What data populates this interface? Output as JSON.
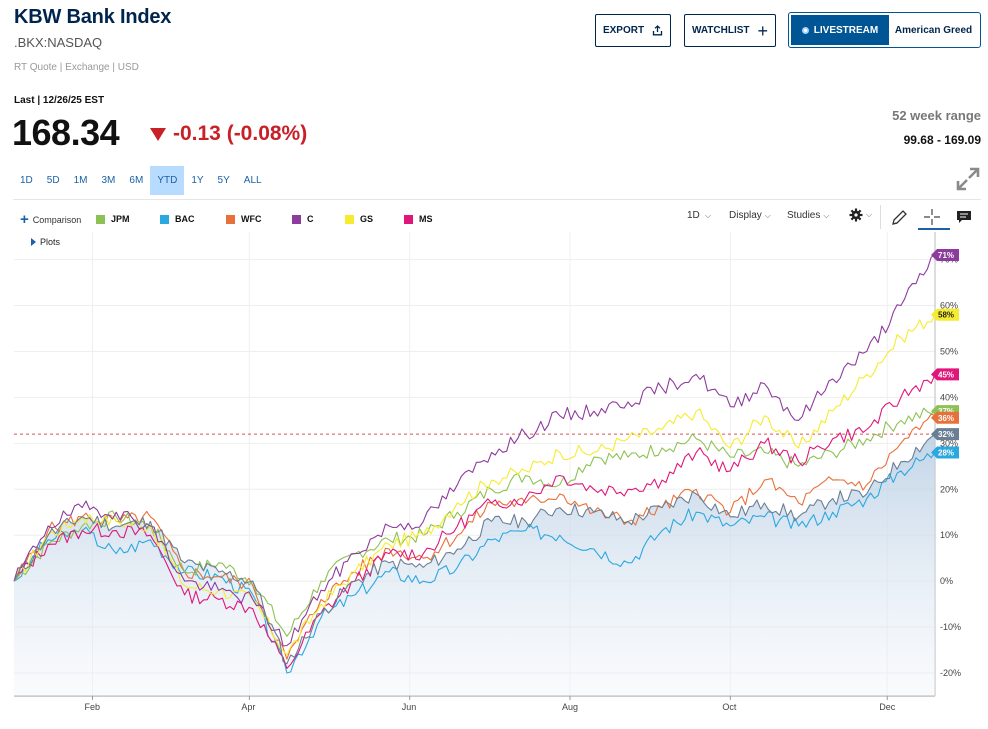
{
  "header": {
    "title": "KBW Bank Index",
    "symbol": ".BKX:NASDAQ",
    "meta": "RT Quote | Exchange | USD"
  },
  "buttons": {
    "export": "EXPORT",
    "watchlist": "WATCHLIST",
    "livestream": "LIVESTREAM",
    "show": "American Greed"
  },
  "quote": {
    "last_label": "Last | 12/26/25 EST",
    "price": "168.34",
    "change": "-0.13 (-0.08%)",
    "range_label": "52 week range",
    "range_value": "99.68 - 169.09"
  },
  "periods": [
    {
      "label": "1D",
      "active": false
    },
    {
      "label": "5D",
      "active": false
    },
    {
      "label": "1M",
      "active": false
    },
    {
      "label": "3M",
      "active": false
    },
    {
      "label": "6M",
      "active": false
    },
    {
      "label": "YTD",
      "active": true
    },
    {
      "label": "1Y",
      "active": false
    },
    {
      "label": "5Y",
      "active": false
    },
    {
      "label": "ALL",
      "active": false
    }
  ],
  "toolbar": {
    "comparison": "Comparison",
    "plots": "Plots",
    "interval": "1D",
    "display": "Display",
    "studies": "Studies"
  },
  "colors": {
    "BKX": "#6a7f94",
    "JPM": "#8dc153",
    "BAC": "#2aa8e0",
    "WFC": "#e8703a",
    "C": "#8e3b9e",
    "GS": "#f5ec2f",
    "MS": "#e0177a"
  },
  "chart_data": {
    "type": "line",
    "x_tick_labels": [
      "Feb",
      "Apr",
      "Jun",
      "Aug",
      "Oct",
      "Dec"
    ],
    "y_tick_labels": [
      "-20%",
      "-10%",
      "0%",
      "10%",
      "20%",
      "30%",
      "40%",
      "50%",
      "60%",
      "70%"
    ],
    "ylim": [
      -25,
      76
    ],
    "y_unit": "%",
    "grid": true,
    "reference_line": 32,
    "end_labels": [
      {
        "series": "C",
        "label": "71%"
      },
      {
        "series": "GS",
        "label": "58%"
      },
      {
        "series": "MS",
        "label": "45%"
      },
      {
        "series": "JPM",
        "label": "37%"
      },
      {
        "series": "WFC",
        "label": "36%"
      },
      {
        "series": "BKX",
        "label": "32%"
      },
      {
        "series": "BAC",
        "label": "28%"
      }
    ],
    "x": [
      "Jan 2",
      "Jan 15",
      "Jan 29",
      "Feb 12",
      "Feb 26",
      "Mar 12",
      "Mar 26",
      "Apr 4",
      "Apr 9",
      "Apr 23",
      "May 7",
      "May 21",
      "Jun 4",
      "Jun 18",
      "Jul 2",
      "Jul 16",
      "Jul 30",
      "Aug 13",
      "Aug 27",
      "Sep 10",
      "Sep 24",
      "Oct 8",
      "Oct 22",
      "Nov 5",
      "Nov 19",
      "Dec 3",
      "Dec 17",
      "Dec 26"
    ],
    "series": [
      {
        "name": "BKX",
        "values": [
          0,
          10,
          14,
          12,
          13,
          4,
          2,
          0,
          -18,
          -7,
          0,
          4,
          3,
          7,
          13,
          13,
          16,
          15,
          13,
          16,
          19,
          14,
          17,
          14,
          18,
          19,
          26,
          32
        ]
      },
      {
        "name": "JPM",
        "values": [
          0,
          8,
          12,
          14,
          12,
          2,
          4,
          0,
          -12,
          0,
          6,
          9,
          10,
          15,
          20,
          23,
          21,
          27,
          27,
          29,
          31,
          27,
          28,
          25,
          28,
          31,
          35,
          37
        ]
      },
      {
        "name": "BAC",
        "values": [
          0,
          9,
          11,
          6,
          9,
          2,
          1,
          -3,
          -20,
          -8,
          -3,
          2,
          0,
          3,
          9,
          11,
          10,
          7,
          4,
          11,
          15,
          12,
          14,
          12,
          15,
          18,
          24,
          28
        ]
      },
      {
        "name": "WFC",
        "values": [
          0,
          11,
          14,
          13,
          14,
          2,
          1,
          -1,
          -17,
          -4,
          2,
          7,
          5,
          10,
          17,
          17,
          19,
          15,
          13,
          16,
          20,
          15,
          22,
          17,
          22,
          21,
          30,
          36
        ]
      },
      {
        "name": "C",
        "values": [
          0,
          12,
          16,
          15,
          12,
          0,
          -2,
          -4,
          -14,
          -2,
          6,
          12,
          13,
          21,
          28,
          32,
          36,
          37,
          39,
          42,
          45,
          38,
          43,
          35,
          44,
          50,
          60,
          71
        ]
      },
      {
        "name": "GS",
        "values": [
          0,
          10,
          14,
          13,
          12,
          -1,
          -2,
          -4,
          -16,
          -5,
          2,
          8,
          10,
          17,
          22,
          24,
          28,
          28,
          31,
          33,
          37,
          29,
          36,
          29,
          37,
          45,
          53,
          58
        ]
      },
      {
        "name": "MS",
        "values": [
          0,
          8,
          11,
          11,
          10,
          -3,
          -4,
          -6,
          -19,
          -7,
          0,
          6,
          6,
          12,
          17,
          18,
          23,
          20,
          20,
          22,
          28,
          24,
          30,
          26,
          31,
          33,
          40,
          45
        ]
      }
    ]
  }
}
